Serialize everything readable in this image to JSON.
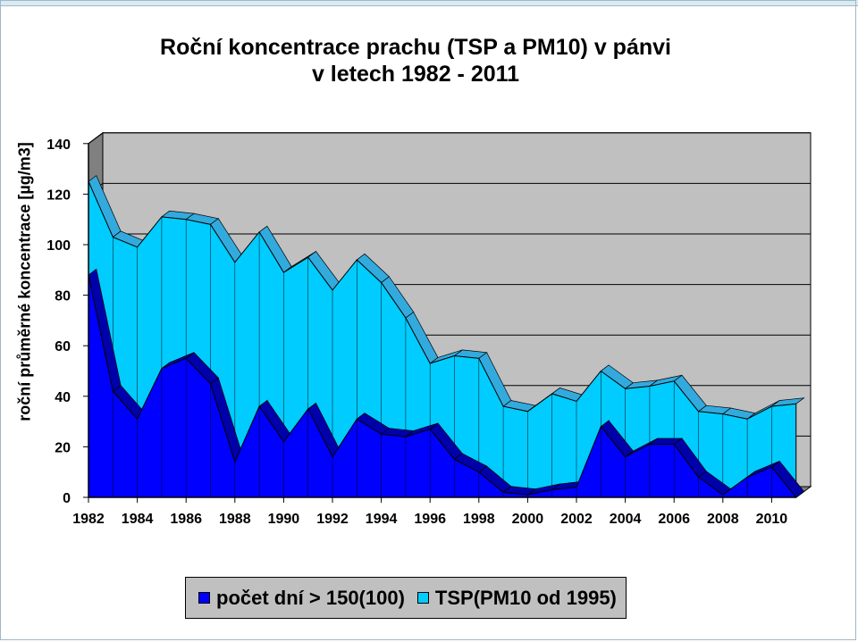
{
  "title_line1": "Roční koncentrace prachu (TSP a PM10) v pánvi",
  "title_line2": "v letech 1982 - 2011",
  "colors": {
    "dust": "#00ccff",
    "days": "#0000ff",
    "wall": "#c0c0c0",
    "floor": "#808080"
  },
  "chart_data": {
    "type": "area",
    "title": "Roční koncentrace prachu (TSP a PM10) v pánvi v letech 1982 - 2011",
    "ylabel": "roční průměrné koncentrace [µg/m3]",
    "xlabel": "",
    "ylim": [
      0,
      140
    ],
    "yticks": [
      "0",
      "20",
      "40",
      "60",
      "80",
      "100",
      "120",
      "140"
    ],
    "xticks": [
      "1982",
      "1984",
      "1986",
      "1988",
      "1990",
      "1992",
      "1994",
      "1996",
      "1998",
      "2000",
      "2002",
      "2004",
      "2006",
      "2008",
      "2010"
    ],
    "grid": true,
    "legend_position": "bottom",
    "x": [
      1982,
      1983,
      1984,
      1985,
      1986,
      1987,
      1988,
      1989,
      1990,
      1991,
      1992,
      1993,
      1994,
      1995,
      1996,
      1997,
      1998,
      1999,
      2000,
      2001,
      2002,
      2003,
      2004,
      2005,
      2006,
      2007,
      2008,
      2009,
      2010,
      2011
    ],
    "series": [
      {
        "name": "TSP(PM10 od 1995)",
        "values": [
          125,
          103,
          99,
          111,
          110,
          108,
          93,
          105,
          89,
          95,
          82,
          94,
          85,
          71,
          53,
          56,
          55,
          36,
          34,
          41,
          38,
          50,
          43,
          44,
          46,
          34,
          33,
          31,
          36,
          37
        ]
      },
      {
        "name": "počet dní > 150(100)",
        "values": [
          88,
          42,
          31,
          51,
          55,
          45,
          14,
          36,
          22,
          35,
          16,
          31,
          25,
          24,
          27,
          15,
          10,
          2,
          1,
          3,
          4,
          28,
          16,
          21,
          21,
          8,
          1,
          8,
          12,
          0
        ]
      }
    ]
  },
  "legend": {
    "days_label": "počet dní > 150(100)",
    "dust_label": "TSP(PM10 od 1995)"
  }
}
